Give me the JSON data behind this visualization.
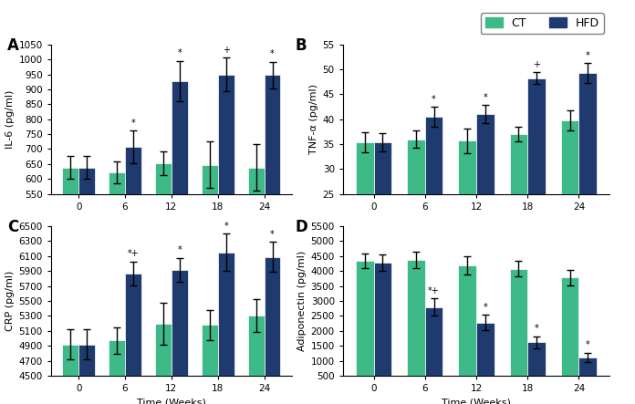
{
  "time_points": [
    0,
    6,
    12,
    18,
    24
  ],
  "panel_A": {
    "label": "A",
    "ylabel": "IL-6 (pg/ml)",
    "ylim": [
      550,
      1050
    ],
    "yticks": [
      550,
      600,
      650,
      700,
      750,
      800,
      850,
      900,
      950,
      1000,
      1050
    ],
    "CT_means": [
      638,
      622,
      653,
      648,
      638
    ],
    "CT_errors": [
      38,
      38,
      40,
      78,
      78
    ],
    "HFD_means": [
      638,
      707,
      927,
      950,
      947
    ],
    "HFD_errors": [
      38,
      55,
      68,
      55,
      45
    ],
    "HFD_sig": [
      false,
      true,
      true,
      true,
      true
    ],
    "sig_labels": [
      "",
      "*",
      "*",
      "+",
      "*"
    ]
  },
  "panel_B": {
    "label": "B",
    "ylabel": "TNF-α (pg/ml)",
    "ylim": [
      25,
      55
    ],
    "yticks": [
      25,
      30,
      35,
      40,
      45,
      50,
      55
    ],
    "CT_means": [
      35.3,
      36.0,
      35.7,
      37.0,
      39.8
    ],
    "CT_errors": [
      2.0,
      1.8,
      2.5,
      1.5,
      2.0
    ],
    "HFD_means": [
      35.4,
      40.5,
      41.0,
      48.2,
      49.3
    ],
    "HFD_errors": [
      1.8,
      2.0,
      1.8,
      1.2,
      2.0
    ],
    "sig_labels": [
      "",
      "*",
      "*",
      "+",
      "*"
    ]
  },
  "panel_C": {
    "label": "C",
    "ylabel": "CRP (pg/ml)",
    "ylim": [
      4500,
      6500
    ],
    "yticks": [
      4500,
      4700,
      4900,
      5100,
      5300,
      5500,
      5700,
      5900,
      6100,
      6300,
      6500
    ],
    "CT_means": [
      4920,
      4970,
      5200,
      5180,
      5300
    ],
    "CT_errors": [
      200,
      180,
      280,
      200,
      220
    ],
    "HFD_means": [
      4920,
      5870,
      5920,
      6150,
      6090
    ],
    "HFD_errors": [
      200,
      160,
      160,
      250,
      200
    ],
    "sig_labels": [
      "",
      "*+",
      "*",
      "*",
      "*"
    ]
  },
  "panel_D": {
    "label": "D",
    "ylabel": "Adiponectin (pg/ml)",
    "ylim": [
      500,
      5500
    ],
    "yticks": [
      500,
      1000,
      1500,
      2000,
      2500,
      3000,
      3500,
      4000,
      4500,
      5000,
      5500
    ],
    "CT_means": [
      4350,
      4380,
      4200,
      4080,
      3780
    ],
    "CT_errors": [
      250,
      280,
      300,
      250,
      270
    ],
    "HFD_means": [
      4280,
      2800,
      2280,
      1620,
      1120
    ],
    "HFD_errors": [
      280,
      280,
      250,
      200,
      150
    ],
    "sig_labels": [
      "",
      "*+",
      "*",
      "*",
      "*"
    ]
  },
  "CT_color": "#3dba87",
  "HFD_color": "#1f3a6e",
  "bar_width": 0.35,
  "background_color": "#ffffff",
  "header_color": "#b8d4e8",
  "border_color": "#4a7aab"
}
